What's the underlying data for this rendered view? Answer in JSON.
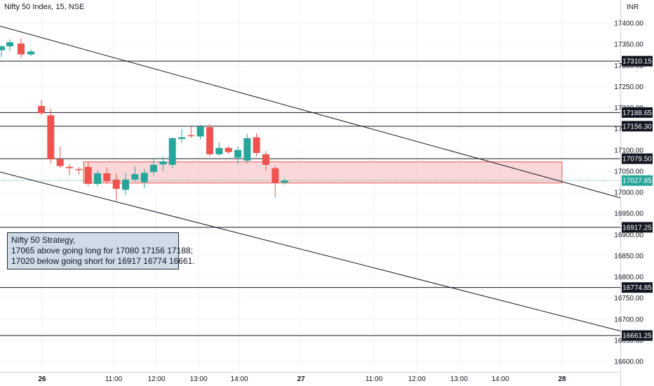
{
  "header": {
    "title": "Nifty 50 Index, 15, NSE"
  },
  "colors": {
    "up": "#26a69a",
    "down": "#ef5350",
    "line": "#131722",
    "zone_fill": "#f8c9cc",
    "zone_stroke": "#ef5350",
    "last_price": "#26a69a",
    "note_bg": "#cfdbe9"
  },
  "chart_data": {
    "type": "candlestick",
    "currency": "INR",
    "ylim": [
      16590,
      17420
    ],
    "y_ticks": [
      "17400.00",
      "17350.00",
      "17300.00",
      "17250.00",
      "17200.00",
      "17150.00",
      "17100.00",
      "17050.00",
      "17000.00",
      "16950.00",
      "16900.00",
      "16850.00",
      "16800.00",
      "16750.00",
      "16700.00",
      "16650.00",
      "16600.00"
    ],
    "x_ticks": [
      "26",
      "11:00",
      "12:00",
      "13:00",
      "14:00",
      "27",
      "11:00",
      "12:00",
      "13:00",
      "14:00",
      "28"
    ],
    "candles": [
      {
        "o": 17336,
        "h": 17348,
        "l": 17320,
        "c": 17345
      },
      {
        "o": 17345,
        "h": 17362,
        "l": 17333,
        "c": 17355
      },
      {
        "o": 17352,
        "h": 17365,
        "l": 17318,
        "c": 17326
      },
      {
        "o": 17326,
        "h": 17338,
        "l": 17322,
        "c": 17333
      },
      {
        "o": 17204,
        "h": 17218,
        "l": 17182,
        "c": 17187
      },
      {
        "o": 17182,
        "h": 17198,
        "l": 17068,
        "c": 17078
      },
      {
        "o": 17078,
        "h": 17108,
        "l": 17058,
        "c": 17062
      },
      {
        "o": 17060,
        "h": 17066,
        "l": 17040,
        "c": 17057
      },
      {
        "o": 17055,
        "h": 17060,
        "l": 17042,
        "c": 17053
      },
      {
        "o": 17060,
        "h": 17072,
        "l": 17015,
        "c": 17020
      },
      {
        "o": 17020,
        "h": 17052,
        "l": 17014,
        "c": 17045
      },
      {
        "o": 17045,
        "h": 17059,
        "l": 17020,
        "c": 17026
      },
      {
        "o": 17030,
        "h": 17045,
        "l": 16980,
        "c": 17008
      },
      {
        "o": 17006,
        "h": 17045,
        "l": 16993,
        "c": 17030
      },
      {
        "o": 17030,
        "h": 17062,
        "l": 17025,
        "c": 17043
      },
      {
        "o": 17024,
        "h": 17055,
        "l": 17010,
        "c": 17046
      },
      {
        "o": 17048,
        "h": 17080,
        "l": 17040,
        "c": 17065
      },
      {
        "o": 17066,
        "h": 17085,
        "l": 17050,
        "c": 17073
      },
      {
        "o": 17065,
        "h": 17130,
        "l": 17058,
        "c": 17128
      },
      {
        "o": 17126,
        "h": 17150,
        "l": 17118,
        "c": 17130
      },
      {
        "o": 17135,
        "h": 17155,
        "l": 17128,
        "c": 17133
      },
      {
        "o": 17132,
        "h": 17160,
        "l": 17125,
        "c": 17155
      },
      {
        "o": 17154,
        "h": 17162,
        "l": 17085,
        "c": 17090
      },
      {
        "o": 17090,
        "h": 17118,
        "l": 17086,
        "c": 17105
      },
      {
        "o": 17105,
        "h": 17110,
        "l": 17090,
        "c": 17095
      },
      {
        "o": 17082,
        "h": 17108,
        "l": 17066,
        "c": 17100
      },
      {
        "o": 17075,
        "h": 17138,
        "l": 17068,
        "c": 17128
      },
      {
        "o": 17130,
        "h": 17140,
        "l": 17085,
        "c": 17093
      },
      {
        "o": 17090,
        "h": 17098,
        "l": 17052,
        "c": 17065
      },
      {
        "o": 17057,
        "h": 17062,
        "l": 16988,
        "c": 17022
      },
      {
        "o": 17023,
        "h": 17032,
        "l": 17018,
        "c": 17028
      }
    ],
    "levels": [
      "17310.15",
      "17188.65",
      "17156.30",
      "17079.50",
      "16917.25",
      "16774.85",
      "16661.25"
    ],
    "last_price": "17027.85",
    "zone": {
      "top": 17072,
      "bottom": 17022
    },
    "trendlines": [
      {
        "from": {
          "x": 0,
          "y": 17393
        },
        "to": {
          "x": 1,
          "y": 16987
        }
      },
      {
        "from": {
          "x": 0,
          "y": 17048
        },
        "to": {
          "x": 1,
          "y": 16672
        }
      }
    ]
  },
  "annotation": {
    "lines": [
      "Nifty 50 Strategy,",
      "17065 above going long for 17080 17156 17188;",
      "17020 below going short for 16917 16774 16661."
    ]
  }
}
